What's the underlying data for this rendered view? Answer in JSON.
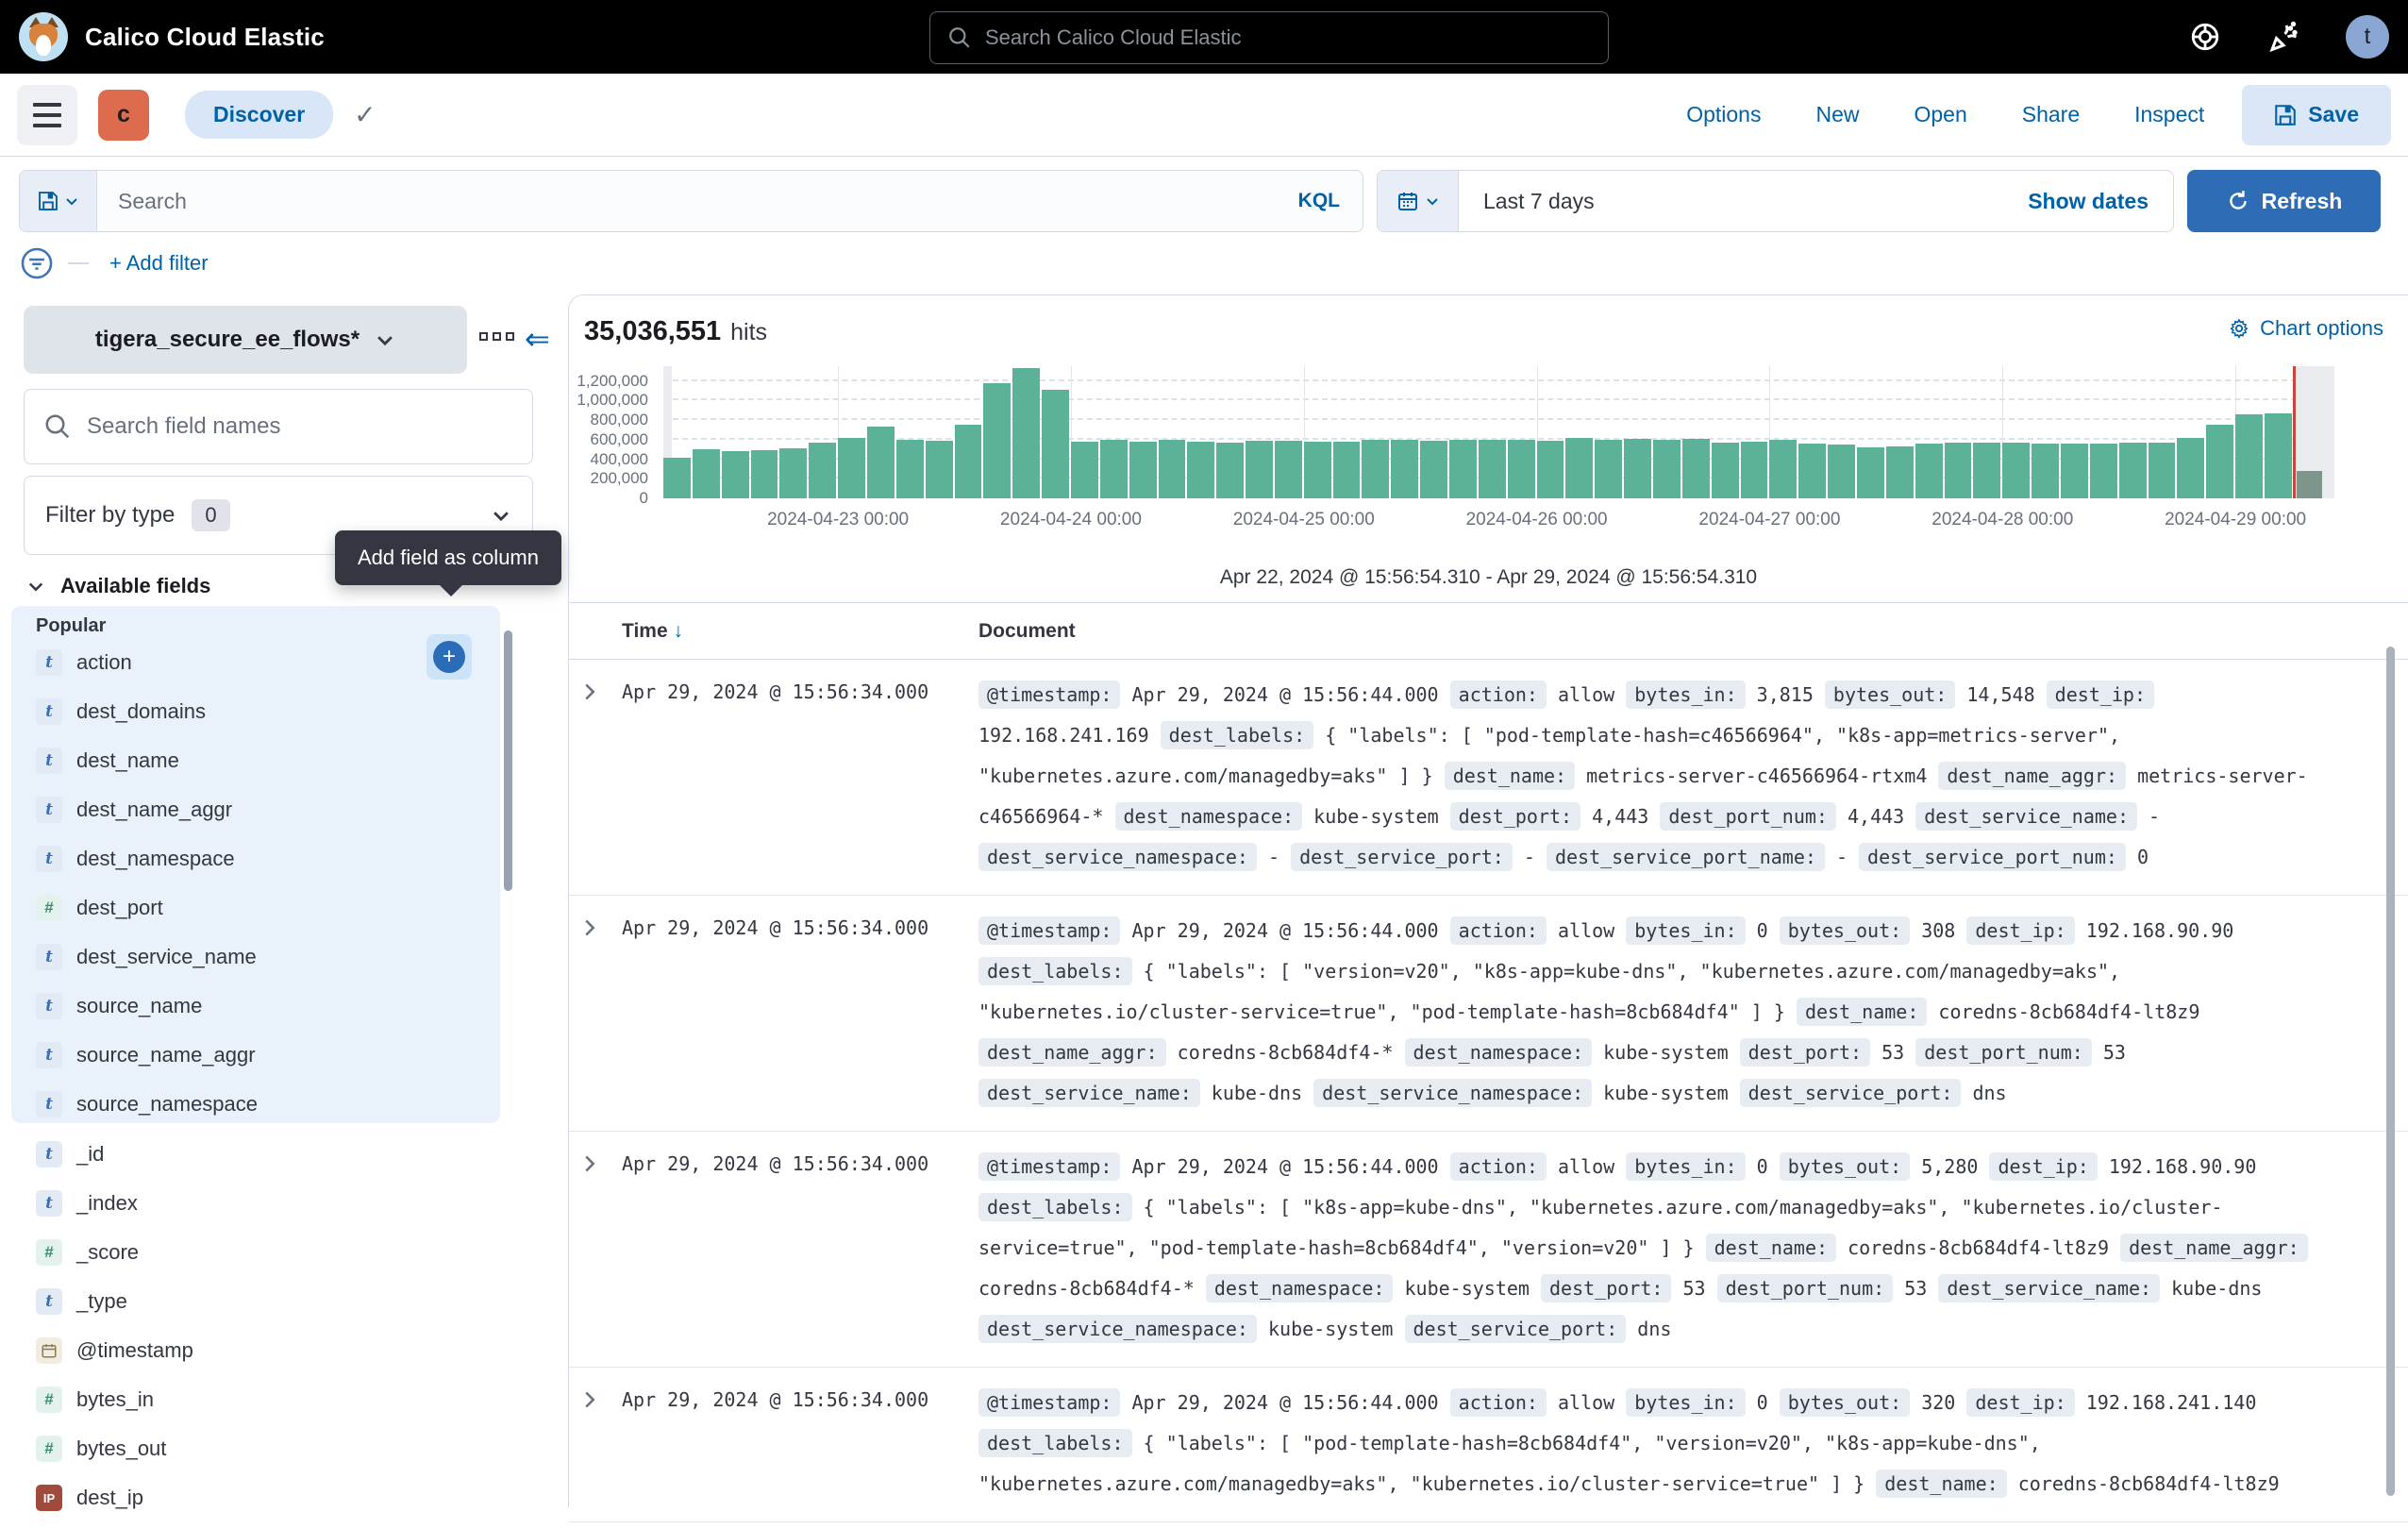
{
  "header": {
    "title": "Calico Cloud Elastic",
    "search_placeholder": "Search Calico Cloud Elastic",
    "avatar_initial": "t"
  },
  "nav": {
    "space_initial": "c",
    "breadcrumb": "Discover",
    "links": [
      "Options",
      "New",
      "Open",
      "Share",
      "Inspect"
    ],
    "save_label": "Save"
  },
  "query_bar": {
    "search_placeholder": "Search",
    "language": "KQL",
    "time_range": "Last 7 days",
    "show_dates_label": "Show dates",
    "refresh_label": "Refresh",
    "add_filter_label": "+ Add filter"
  },
  "sidebar": {
    "index_pattern": "tigera_secure_ee_flows*",
    "field_search_placeholder": "Search field names",
    "filter_by_type_label": "Filter by type",
    "filter_count": "0",
    "available_fields_label": "Available fields",
    "popular_label": "Popular",
    "tooltip": "Add field as column",
    "popular_fields": [
      {
        "name": "action",
        "type": "t",
        "add_button": true
      },
      {
        "name": "dest_domains",
        "type": "t"
      },
      {
        "name": "dest_name",
        "type": "t"
      },
      {
        "name": "dest_name_aggr",
        "type": "t"
      },
      {
        "name": "dest_namespace",
        "type": "t"
      },
      {
        "name": "dest_port",
        "type": "num"
      },
      {
        "name": "dest_service_name",
        "type": "t"
      },
      {
        "name": "source_name",
        "type": "t"
      },
      {
        "name": "source_name_aggr",
        "type": "t"
      },
      {
        "name": "source_namespace",
        "type": "t"
      }
    ],
    "other_fields": [
      {
        "name": "_id",
        "type": "t"
      },
      {
        "name": "_index",
        "type": "t"
      },
      {
        "name": "_score",
        "type": "num"
      },
      {
        "name": "_type",
        "type": "t"
      },
      {
        "name": "@timestamp",
        "type": "date"
      },
      {
        "name": "bytes_in",
        "type": "num"
      },
      {
        "name": "bytes_out",
        "type": "num"
      },
      {
        "name": "dest_ip",
        "type": "ip"
      }
    ]
  },
  "main": {
    "hits_value": "35,036,551",
    "hits_label": "hits",
    "chart_options_label": "Chart options",
    "time_range_caption": "Apr 22, 2024 @ 15:56:54.310 - Apr 29, 2024 @ 15:56:54.310"
  },
  "chart_data": {
    "type": "bar",
    "title": "Document count over time",
    "bucket_interval": "3h",
    "x_labels": [
      "2024-04-23 00:00",
      "2024-04-24 00:00",
      "2024-04-25 00:00",
      "2024-04-26 00:00",
      "2024-04-27 00:00",
      "2024-04-28 00:00",
      "2024-04-29 00:00"
    ],
    "day_tick_indices": [
      6,
      14,
      22,
      30,
      38,
      46,
      54
    ],
    "values": [
      410000,
      500000,
      480000,
      495000,
      515000,
      570000,
      615000,
      730000,
      600000,
      590000,
      755000,
      1180000,
      1330000,
      1105000,
      580000,
      595000,
      575000,
      600000,
      580000,
      565000,
      585000,
      590000,
      580000,
      580000,
      600000,
      595000,
      585000,
      595000,
      600000,
      600000,
      590000,
      615000,
      600000,
      610000,
      600000,
      605000,
      565000,
      575000,
      595000,
      555000,
      545000,
      525000,
      530000,
      555000,
      565000,
      565000,
      565000,
      560000,
      560000,
      560000,
      565000,
      570000,
      615000,
      755000,
      855000,
      870000
    ],
    "partial_bucket_value": 280000,
    "ylim": [
      0,
      1350000
    ],
    "yticks": [
      0,
      200000,
      400000,
      600000,
      800000,
      1000000,
      1200000
    ],
    "bar_color": "#5cb299",
    "partial_bar_color": "#7d958a",
    "current_time_marker_color": "#c4483d",
    "grid": true,
    "legend": false
  },
  "table": {
    "columns": [
      "Time",
      "Document"
    ],
    "sort_icon": "↓",
    "rows": [
      {
        "time": "Apr 29, 2024 @ 15:56:34.000",
        "fields": [
          [
            "@timestamp",
            "Apr 29, 2024 @ 15:56:44.000"
          ],
          [
            "action",
            "allow"
          ],
          [
            "bytes_in",
            "3,815"
          ],
          [
            "bytes_out",
            "14,548"
          ],
          [
            "dest_ip",
            "192.168.241.169"
          ],
          [
            "dest_labels",
            "{ \"labels\": [ \"pod-template-hash=c46566964\", \"k8s-app=metrics-server\", \"kubernetes.azure.com/managedby=aks\" ] }"
          ],
          [
            "dest_name",
            "metrics-server-c46566964-rtxm4"
          ],
          [
            "dest_name_aggr",
            "metrics-server-c46566964-*"
          ],
          [
            "dest_namespace",
            "kube-system"
          ],
          [
            "dest_port",
            "4,443"
          ],
          [
            "dest_port_num",
            "4,443"
          ],
          [
            "dest_service_name",
            "-"
          ],
          [
            "dest_service_namespace",
            "-"
          ],
          [
            "dest_service_port",
            "-"
          ],
          [
            "dest_service_port_name",
            "-"
          ],
          [
            "dest_service_port_num",
            "0"
          ]
        ]
      },
      {
        "time": "Apr 29, 2024 @ 15:56:34.000",
        "fields": [
          [
            "@timestamp",
            "Apr 29, 2024 @ 15:56:44.000"
          ],
          [
            "action",
            "allow"
          ],
          [
            "bytes_in",
            "0"
          ],
          [
            "bytes_out",
            "308"
          ],
          [
            "dest_ip",
            "192.168.90.90"
          ],
          [
            "dest_labels",
            "{ \"labels\": [ \"version=v20\", \"k8s-app=kube-dns\", \"kubernetes.azure.com/managedby=aks\", \"kubernetes.io/cluster-service=true\", \"pod-template-hash=8cb684df4\" ] }"
          ],
          [
            "dest_name",
            "coredns-8cb684df4-lt8z9"
          ],
          [
            "dest_name_aggr",
            "coredns-8cb684df4-*"
          ],
          [
            "dest_namespace",
            "kube-system"
          ],
          [
            "dest_port",
            "53"
          ],
          [
            "dest_port_num",
            "53"
          ],
          [
            "dest_service_name",
            "kube-dns"
          ],
          [
            "dest_service_namespace",
            "kube-system"
          ],
          [
            "dest_service_port",
            "dns"
          ]
        ]
      },
      {
        "time": "Apr 29, 2024 @ 15:56:34.000",
        "fields": [
          [
            "@timestamp",
            "Apr 29, 2024 @ 15:56:44.000"
          ],
          [
            "action",
            "allow"
          ],
          [
            "bytes_in",
            "0"
          ],
          [
            "bytes_out",
            "5,280"
          ],
          [
            "dest_ip",
            "192.168.90.90"
          ],
          [
            "dest_labels",
            "{ \"labels\": [ \"k8s-app=kube-dns\", \"kubernetes.azure.com/managedby=aks\", \"kubernetes.io/cluster-service=true\", \"pod-template-hash=8cb684df4\", \"version=v20\" ] }"
          ],
          [
            "dest_name",
            "coredns-8cb684df4-lt8z9"
          ],
          [
            "dest_name_aggr",
            "coredns-8cb684df4-*"
          ],
          [
            "dest_namespace",
            "kube-system"
          ],
          [
            "dest_port",
            "53"
          ],
          [
            "dest_port_num",
            "53"
          ],
          [
            "dest_service_name",
            "kube-dns"
          ],
          [
            "dest_service_namespace",
            "kube-system"
          ],
          [
            "dest_service_port",
            "dns"
          ]
        ]
      },
      {
        "time": "Apr 29, 2024 @ 15:56:34.000",
        "fields": [
          [
            "@timestamp",
            "Apr 29, 2024 @ 15:56:44.000"
          ],
          [
            "action",
            "allow"
          ],
          [
            "bytes_in",
            "0"
          ],
          [
            "bytes_out",
            "320"
          ],
          [
            "dest_ip",
            "192.168.241.140"
          ],
          [
            "dest_labels",
            "{ \"labels\": [ \"pod-template-hash=8cb684df4\", \"version=v20\", \"k8s-app=kube-dns\", \"kubernetes.azure.com/managedby=aks\", \"kubernetes.io/cluster-service=true\" ] }"
          ],
          [
            "dest_name",
            "coredns-8cb684df4-lt8z9"
          ]
        ]
      }
    ]
  }
}
